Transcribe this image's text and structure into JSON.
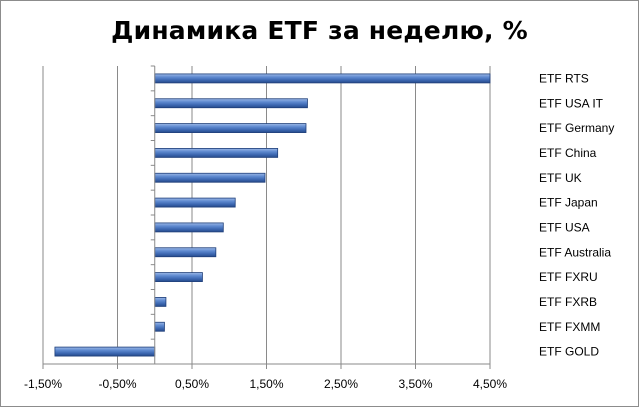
{
  "chart_data": {
    "type": "bar",
    "orientation": "horizontal",
    "title": "Динамика ETF за неделю, %",
    "xlabel": "",
    "ylabel": "",
    "categories": [
      "ETF RTS",
      "ETF USA IT",
      "ETF Germany",
      "ETF China",
      "ETF UK",
      "ETF Japan",
      "ETF USA",
      "ETF Australia",
      "ETF FXRU",
      "ETF FXRB",
      "ETF FXMM",
      "ETF GOLD"
    ],
    "values": [
      4.5,
      2.05,
      2.03,
      1.65,
      1.48,
      1.08,
      0.92,
      0.82,
      0.64,
      0.15,
      0.13,
      -1.34
    ],
    "xlim": [
      -1.5,
      4.5
    ],
    "ticks": [
      -1.5,
      -0.5,
      0.5,
      1.5,
      2.5,
      3.5,
      4.5
    ],
    "tick_labels": [
      "-1,50%",
      "-0,50%",
      "0,50%",
      "1,50%",
      "2,50%",
      "3,50%",
      "4,50%"
    ],
    "grid": true,
    "legend": "none",
    "bar_color": "#4a78c2"
  }
}
